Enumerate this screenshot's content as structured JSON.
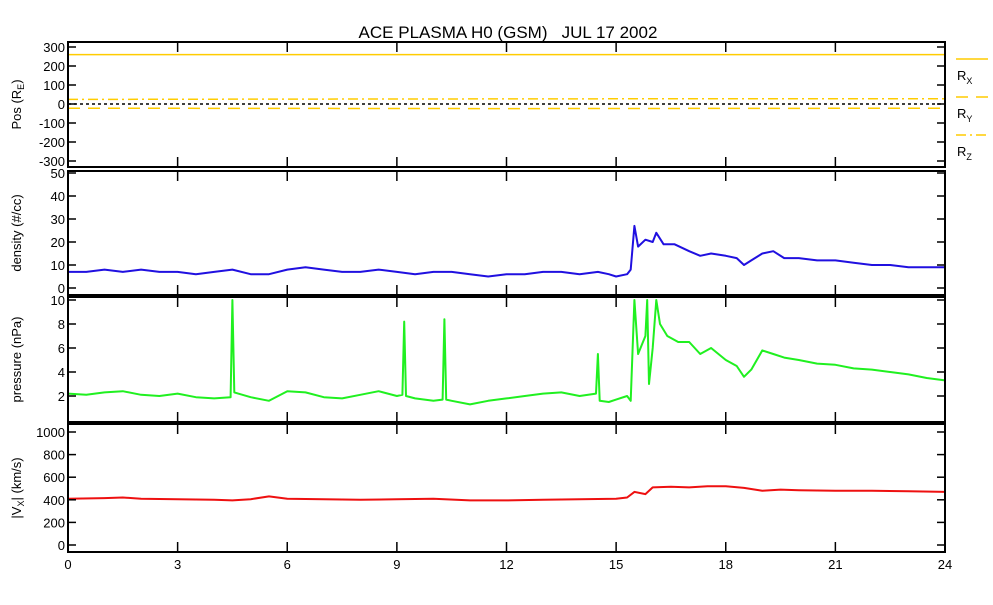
{
  "chart_data": [
    {
      "type": "line",
      "title": "ACE PLASMA H0 (GSM)   JUL 17 2002",
      "ylabel": "Pos (R_E)",
      "ylabel_main": "Pos (R",
      "ylabel_sub": "E",
      "ylim": [
        -300,
        300
      ],
      "yticks": [
        "300",
        "200",
        "100",
        "0",
        "-100",
        "-200",
        "-300"
      ],
      "ytick_values": [
        300,
        200,
        100,
        0,
        -100,
        -200,
        -300
      ],
      "series": [
        {
          "name": "RX",
          "label_main": "R",
          "label_sub": "X",
          "style": "solid",
          "color": "#ffcc00",
          "x": [
            0,
            24
          ],
          "y": [
            260,
            260
          ]
        },
        {
          "name": "RY",
          "label_main": "R",
          "label_sub": "Y",
          "style": "dashed",
          "color": "#ffcc00",
          "x": [
            0,
            6,
            12,
            18,
            24
          ],
          "y": [
            -22,
            -23,
            -24,
            -23,
            -22
          ]
        },
        {
          "name": "RZ",
          "label_main": "R",
          "label_sub": "Z",
          "style": "dashdot",
          "color": "#ffcc00",
          "x": [
            0,
            6,
            12,
            18,
            24
          ],
          "y": [
            24,
            26,
            27,
            28,
            28
          ]
        },
        {
          "name": "zero",
          "style": "dotted",
          "color": "#000000",
          "x": [
            0,
            24
          ],
          "y": [
            0,
            0
          ]
        }
      ]
    },
    {
      "type": "line",
      "ylabel": "density (#/cc)",
      "ylim": [
        0,
        50
      ],
      "yticks": [
        "50",
        "40",
        "30",
        "20",
        "10",
        "0"
      ],
      "ytick_values": [
        50,
        40,
        30,
        20,
        10,
        0
      ],
      "series": [
        {
          "name": "density",
          "color": "#2010e0",
          "x": [
            0,
            0.5,
            1,
            1.5,
            2,
            2.5,
            3,
            3.5,
            4,
            4.5,
            5,
            5.5,
            6,
            6.5,
            7,
            7.5,
            8,
            8.5,
            9,
            9.5,
            10,
            10.5,
            11,
            11.5,
            12,
            12.5,
            13,
            13.5,
            14,
            14.5,
            14.8,
            15,
            15.3,
            15.4,
            15.5,
            15.6,
            15.8,
            16,
            16.1,
            16.3,
            16.6,
            17,
            17.3,
            17.6,
            18,
            18.3,
            18.5,
            18.7,
            19,
            19.3,
            19.6,
            20,
            20.5,
            21,
            21.5,
            22,
            22.5,
            23,
            23.5,
            24
          ],
          "y": [
            7,
            7,
            8,
            7,
            8,
            7,
            7,
            6,
            7,
            8,
            6,
            6,
            8,
            9,
            8,
            7,
            7,
            8,
            7,
            6,
            7,
            7,
            6,
            5,
            6,
            6,
            7,
            7,
            6,
            7,
            6,
            5,
            6,
            8,
            27,
            18,
            21,
            20,
            24,
            19,
            19,
            16,
            14,
            15,
            14,
            13,
            10,
            12,
            15,
            16,
            13,
            13,
            12,
            12,
            11,
            10,
            10,
            9,
            9,
            9
          ]
        }
      ]
    },
    {
      "type": "line",
      "ylabel": "pressure (nPa)",
      "ylim": [
        0,
        10
      ],
      "yticks": [
        "10",
        "8",
        "6",
        "4",
        "2"
      ],
      "ytick_values": [
        10,
        8,
        6,
        4,
        2
      ],
      "series": [
        {
          "name": "pressure",
          "color": "#20f020",
          "x": [
            0,
            0.5,
            1,
            1.5,
            2,
            2.5,
            3,
            3.5,
            4,
            4.45,
            4.5,
            4.55,
            5,
            5.5,
            6,
            6.5,
            7,
            7.5,
            8,
            8.5,
            9,
            9.15,
            9.2,
            9.25,
            9.5,
            10,
            10.25,
            10.3,
            10.35,
            10.5,
            11,
            11.5,
            12,
            12.5,
            13,
            13.5,
            14,
            14.45,
            14.5,
            14.55,
            14.8,
            15,
            15.3,
            15.4,
            15.5,
            15.6,
            15.8,
            15.85,
            15.9,
            16,
            16.1,
            16.2,
            16.4,
            16.7,
            17,
            17.3,
            17.6,
            18,
            18.3,
            18.5,
            18.7,
            19,
            19.3,
            19.6,
            20,
            20.5,
            21,
            21.5,
            22,
            22.5,
            23,
            23.5,
            24
          ],
          "y": [
            2.2,
            2.1,
            2.3,
            2.4,
            2.1,
            2,
            2.2,
            1.9,
            1.8,
            1.9,
            10,
            2.3,
            1.9,
            1.6,
            2.4,
            2.3,
            1.9,
            1.8,
            2.1,
            2.4,
            2.0,
            2.1,
            8.2,
            2.0,
            1.8,
            1.6,
            1.7,
            8.4,
            1.7,
            1.6,
            1.3,
            1.6,
            1.8,
            2,
            2.2,
            2.3,
            2,
            2.2,
            5.5,
            1.6,
            1.5,
            1.7,
            2,
            1.6,
            10,
            5.5,
            7,
            10,
            3,
            6,
            10,
            8,
            7,
            6.5,
            6.5,
            5.5,
            6,
            5,
            4.5,
            3.6,
            4.2,
            5.8,
            5.5,
            5.2,
            5.0,
            4.7,
            4.6,
            4.3,
            4.2,
            4,
            3.8,
            3.5,
            3.3
          ]
        }
      ]
    },
    {
      "type": "line",
      "ylabel": "|V_X| (km/s)",
      "ylabel_pre": "|V",
      "ylabel_sub": "X",
      "ylabel_post": "| (km/s)",
      "ylim": [
        0,
        1000
      ],
      "yticks": [
        "1000",
        "800",
        "600",
        "400",
        "200",
        "0"
      ],
      "ytick_values": [
        1000,
        800,
        600,
        400,
        200,
        0
      ],
      "series": [
        {
          "name": "vx",
          "color": "#ee1010",
          "x": [
            0,
            1,
            1.5,
            2,
            3,
            4,
            4.5,
            5,
            5.5,
            6,
            7,
            8,
            9,
            10,
            11,
            12,
            13,
            14,
            15,
            15.3,
            15.5,
            15.8,
            16,
            16.5,
            17,
            17.5,
            18,
            18.5,
            19,
            19.5,
            20,
            21,
            22,
            23,
            24
          ],
          "y": [
            410,
            415,
            420,
            410,
            405,
            400,
            395,
            405,
            430,
            410,
            405,
            400,
            405,
            410,
            395,
            395,
            400,
            405,
            410,
            420,
            470,
            450,
            510,
            515,
            510,
            520,
            520,
            505,
            480,
            490,
            485,
            480,
            480,
            475,
            470
          ]
        }
      ]
    }
  ],
  "x_axis": {
    "xlim": [
      0,
      24
    ],
    "ticks": [
      "0",
      "3",
      "6",
      "9",
      "12",
      "15",
      "18",
      "21",
      "24"
    ],
    "tick_values": [
      0,
      3,
      6,
      9,
      12,
      15,
      18,
      21,
      24
    ]
  }
}
